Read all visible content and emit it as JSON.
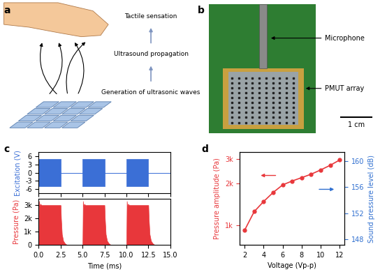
{
  "panel_a": {
    "label": "a",
    "steps": [
      "Tactile sensation",
      "Ultrasound propagation",
      "Generation of ultrasonic waves"
    ]
  },
  "panel_b": {
    "label": "b",
    "annotations": [
      "Microphone",
      "PMUT array"
    ],
    "scale_bar": "1 cm"
  },
  "chart_data": [
    {
      "title": "c",
      "type": "area",
      "y_label": "Excitation (V)",
      "tick_labels": "y",
      "color": "#3b6fd6",
      "x": [
        0,
        2.5,
        2.5,
        5,
        5,
        7.5,
        7.5,
        10,
        10,
        12.5,
        12.5,
        15
      ],
      "values": [
        5,
        5,
        0,
        0,
        5,
        5,
        0,
        0,
        5,
        5,
        0,
        0
      ],
      "lower": [
        -5,
        -5,
        0,
        0,
        -5,
        -5,
        0,
        0,
        -5,
        -5,
        0,
        0
      ],
      "xlim": [
        0,
        15
      ],
      "ylim": [
        -7.5,
        7.5
      ],
      "yticks": [
        -6,
        -3,
        0,
        3,
        6
      ]
    },
    {
      "type": "area",
      "y_label": "Pressure (Pa)",
      "x_label": "Time (ms)",
      "color": "#e8373b",
      "x": [
        0,
        0.05,
        0.1,
        0.2,
        0.3,
        2.5,
        2.55,
        2.65,
        2.8,
        3.0,
        3.2,
        5.0,
        5.05,
        5.1,
        5.2,
        5.3,
        7.5,
        7.55,
        7.65,
        7.8,
        8.0,
        8.2,
        10.0,
        10.05,
        10.1,
        10.2,
        10.3,
        12.5,
        12.55,
        12.65,
        12.8,
        13.0,
        13.2,
        15.0
      ],
      "values": [
        0,
        3300,
        2900,
        3100,
        3000,
        3000,
        2000,
        800,
        300,
        100,
        0,
        0,
        3300,
        2900,
        3100,
        3000,
        3000,
        2000,
        800,
        300,
        100,
        0,
        0,
        3300,
        2900,
        3100,
        3000,
        3000,
        2000,
        800,
        300,
        100,
        0,
        0
      ],
      "xlim": [
        0,
        15
      ],
      "xticks": [
        {
          "value": 0,
          "label": "0.0"
        },
        {
          "value": 2.5,
          "label": "2.5"
        },
        {
          "value": 5,
          "label": "5.0"
        },
        {
          "value": 7.5,
          "label": "7.5"
        },
        {
          "value": 10,
          "label": "10.0"
        },
        {
          "value": 12.5,
          "label": "12.5"
        },
        {
          "value": 15,
          "label": "15.0"
        }
      ],
      "ylim": [
        0,
        3500
      ],
      "yticks": [
        0,
        {
          "value": 1000,
          "label": "1k"
        },
        {
          "value": 2000,
          "label": "2k"
        },
        {
          "value": 3000,
          "label": "3k"
        }
      ]
    },
    {
      "title": "d",
      "type": "line",
      "color": "#e8373b",
      "marker": "o",
      "x": [
        2,
        3,
        4,
        5,
        6,
        7,
        8,
        9,
        10,
        11,
        12
      ],
      "values": [
        920,
        1250,
        1480,
        1720,
        1950,
        2080,
        2200,
        2330,
        2500,
        2700,
        2950
      ],
      "x_label": "Voltage (Vp-p)",
      "y_label": "Pressure amplitude (Pa)",
      "y2_label": "Sound pressure level (dB)",
      "log": "y",
      "xlim": [
        1.5,
        12.5
      ],
      "xticks": [
        2,
        4,
        6,
        8,
        10,
        12
      ],
      "ylim": [
        720,
        3350
      ],
      "yticks": [
        {
          "value": 1000,
          "label": "1k"
        },
        {
          "value": 2000,
          "label": "2k"
        },
        {
          "value": 3000,
          "label": "3k"
        }
      ],
      "y2lim": [
        147.2,
        161.3
      ],
      "y2ticks": [
        148,
        152,
        156,
        160
      ]
    }
  ]
}
